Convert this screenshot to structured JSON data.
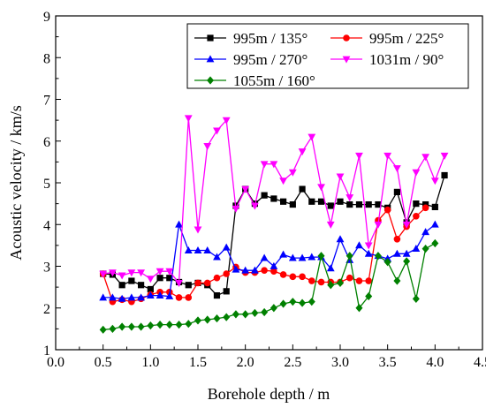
{
  "chart_data": {
    "type": "line",
    "title": "",
    "xlabel": "Borehole depth / m",
    "ylabel": "Acoustic velocity / km/s",
    "xlim": [
      0.0,
      4.5
    ],
    "ylim": [
      1,
      9
    ],
    "xticks": [
      "0.0",
      "0.5",
      "1.0",
      "1.5",
      "2.0",
      "2.5",
      "3.0",
      "3.5",
      "4.0",
      "4.5"
    ],
    "yticks": [
      "1",
      "2",
      "3",
      "4",
      "5",
      "6",
      "7",
      "8",
      "9"
    ],
    "grid": false,
    "legend_position": "top-right",
    "series": [
      {
        "name": "995m / 135°",
        "color": "#000000",
        "marker": "square",
        "x": [
          0.5,
          0.6,
          0.7,
          0.8,
          0.9,
          1.0,
          1.1,
          1.2,
          1.3,
          1.4,
          1.5,
          1.6,
          1.7,
          1.8,
          1.9,
          2.0,
          2.1,
          2.2,
          2.3,
          2.4,
          2.5,
          2.6,
          2.7,
          2.8,
          2.9,
          3.0,
          3.1,
          3.2,
          3.3,
          3.4,
          3.5,
          3.6,
          3.7,
          3.8,
          3.9,
          4.0,
          4.1
        ],
        "y": [
          2.82,
          2.8,
          2.55,
          2.65,
          2.55,
          2.45,
          2.72,
          2.72,
          2.62,
          2.55,
          2.6,
          2.55,
          2.3,
          2.4,
          4.45,
          4.85,
          4.5,
          4.7,
          4.62,
          4.55,
          4.48,
          4.85,
          4.55,
          4.55,
          4.45,
          4.55,
          4.48,
          4.48,
          4.48,
          4.48,
          4.4,
          4.78,
          4.05,
          4.5,
          4.48,
          4.42,
          5.18
        ]
      },
      {
        "name": "995m / 225°",
        "color": "#ff0000",
        "marker": "circle",
        "x": [
          0.5,
          0.6,
          0.7,
          0.8,
          0.9,
          1.0,
          1.1,
          1.2,
          1.3,
          1.4,
          1.5,
          1.6,
          1.7,
          1.8,
          1.9,
          2.0,
          2.1,
          2.2,
          2.3,
          2.4,
          2.5,
          2.6,
          2.7,
          2.8,
          2.9,
          3.0,
          3.1,
          3.2,
          3.3,
          3.4,
          3.5,
          3.6,
          3.7,
          3.8,
          3.9
        ],
        "y": [
          2.82,
          2.15,
          2.2,
          2.15,
          2.22,
          2.32,
          2.38,
          2.38,
          2.25,
          2.25,
          2.6,
          2.6,
          2.72,
          2.82,
          2.98,
          2.85,
          2.85,
          2.9,
          2.88,
          2.8,
          2.75,
          2.75,
          2.65,
          2.62,
          2.62,
          2.62,
          2.72,
          2.65,
          2.65,
          4.1,
          4.35,
          3.65,
          3.95,
          4.2,
          4.4
        ]
      },
      {
        "name": "995m / 270°",
        "color": "#0000ff",
        "marker": "triangle-up",
        "x": [
          0.5,
          0.6,
          0.7,
          0.8,
          0.9,
          1.0,
          1.1,
          1.2,
          1.3,
          1.4,
          1.5,
          1.6,
          1.7,
          1.8,
          1.9,
          2.0,
          2.1,
          2.2,
          2.3,
          2.4,
          2.5,
          2.6,
          2.7,
          2.8,
          2.9,
          3.0,
          3.1,
          3.2,
          3.3,
          3.4,
          3.5,
          3.6,
          3.7,
          3.8,
          3.9,
          4.0
        ],
        "y": [
          2.25,
          2.25,
          2.22,
          2.25,
          2.25,
          2.3,
          2.3,
          2.28,
          4.0,
          3.38,
          3.38,
          3.38,
          3.22,
          3.45,
          2.92,
          2.9,
          2.9,
          3.2,
          3.0,
          3.28,
          3.2,
          3.2,
          3.22,
          3.22,
          2.95,
          3.65,
          3.15,
          3.5,
          3.3,
          3.25,
          3.18,
          3.3,
          3.3,
          3.42,
          3.82,
          4.0
        ]
      },
      {
        "name": "1031m / 90°",
        "color": "#ff00ff",
        "marker": "triangle-down",
        "x": [
          0.5,
          0.6,
          0.7,
          0.8,
          0.9,
          1.0,
          1.1,
          1.2,
          1.3,
          1.4,
          1.5,
          1.6,
          1.7,
          1.8,
          1.9,
          2.0,
          2.1,
          2.2,
          2.3,
          2.4,
          2.5,
          2.6,
          2.7,
          2.8,
          2.9,
          3.0,
          3.1,
          3.2,
          3.3,
          3.4,
          3.5,
          3.6,
          3.7,
          3.8,
          3.9,
          4.0,
          4.1
        ],
        "y": [
          2.82,
          2.85,
          2.78,
          2.85,
          2.85,
          2.7,
          2.88,
          2.88,
          2.6,
          6.55,
          3.88,
          5.88,
          6.25,
          6.5,
          4.38,
          4.85,
          4.45,
          5.45,
          5.45,
          5.05,
          5.25,
          5.75,
          6.1,
          4.9,
          4.0,
          5.15,
          4.65,
          5.65,
          3.5,
          4.0,
          5.65,
          5.35,
          4.0,
          5.25,
          5.62,
          5.05,
          5.65
        ]
      },
      {
        "name": "1055m / 160°",
        "color": "#008000",
        "marker": "diamond",
        "x": [
          0.5,
          0.6,
          0.7,
          0.8,
          0.9,
          1.0,
          1.1,
          1.2,
          1.3,
          1.4,
          1.5,
          1.6,
          1.7,
          1.8,
          1.9,
          2.0,
          2.1,
          2.2,
          2.3,
          2.4,
          2.5,
          2.6,
          2.7,
          2.8,
          2.9,
          3.0,
          3.1,
          3.2,
          3.3,
          3.4,
          3.5,
          3.6,
          3.7,
          3.8,
          3.9,
          4.0
        ],
        "y": [
          1.48,
          1.5,
          1.55,
          1.55,
          1.55,
          1.58,
          1.6,
          1.6,
          1.6,
          1.62,
          1.7,
          1.72,
          1.75,
          1.78,
          1.85,
          1.85,
          1.88,
          1.9,
          2.0,
          2.1,
          2.15,
          2.12,
          2.15,
          3.25,
          2.55,
          2.6,
          3.25,
          2.0,
          2.28,
          3.25,
          3.1,
          2.65,
          3.12,
          2.22,
          3.42,
          3.55
        ]
      }
    ]
  }
}
